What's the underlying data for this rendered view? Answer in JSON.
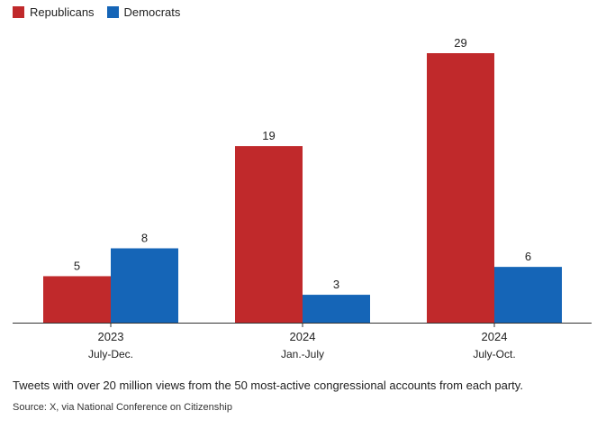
{
  "colors": {
    "republicans": "#c0292b",
    "democrats": "#1565b7",
    "axis": "#333333"
  },
  "caption": "Tweets with over 20 million views from the 50 most-active congressional accounts from each party.",
  "source": "Source: X, via National Conference on Citizenship",
  "chart_data": {
    "type": "bar",
    "categories": [
      {
        "year": "2023",
        "period": "July-Dec."
      },
      {
        "year": "2024",
        "period": "Jan.-July"
      },
      {
        "year": "2024",
        "period": "July-Oct."
      }
    ],
    "series": [
      {
        "name": "Republicans",
        "values": [
          5,
          19,
          29
        ]
      },
      {
        "name": "Democrats",
        "values": [
          8,
          3,
          6
        ]
      }
    ],
    "ylim": [
      0,
      29
    ],
    "grid": false,
    "legend": "top-left",
    "data_labels": true
  }
}
